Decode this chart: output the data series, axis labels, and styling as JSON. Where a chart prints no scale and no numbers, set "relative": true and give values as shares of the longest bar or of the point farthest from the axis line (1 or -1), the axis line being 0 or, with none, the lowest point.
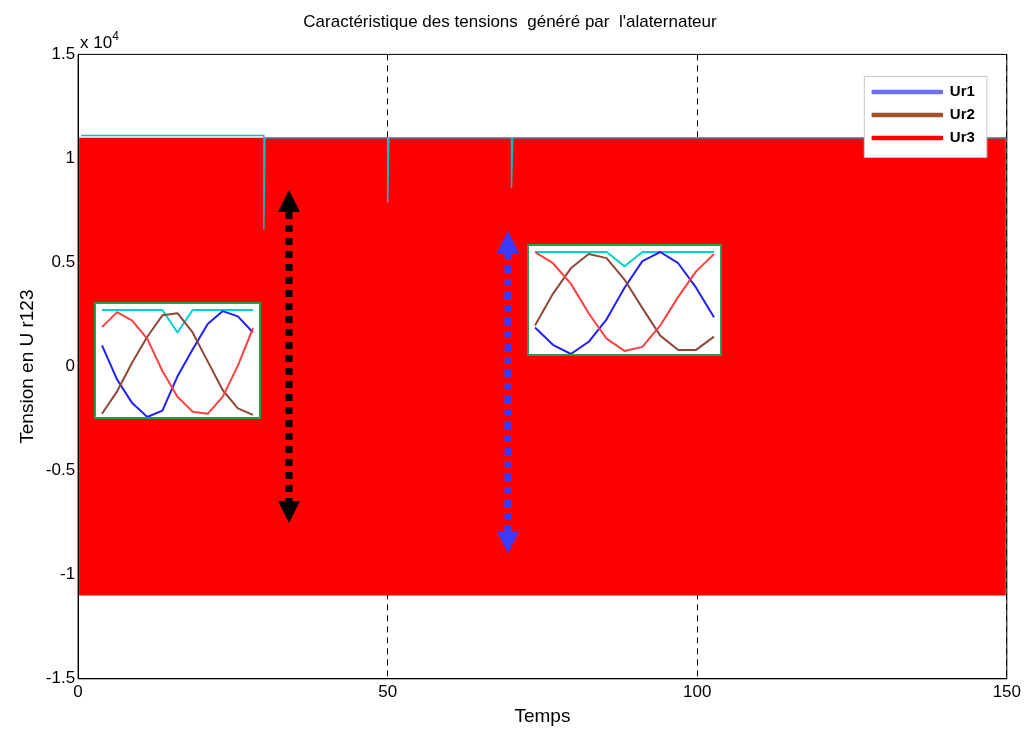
{
  "chart_data": [
    {
      "type": "line",
      "title": "Caractéristique des tensions  généré par  l'alaternateur",
      "xlabel": "Temps",
      "ylabel": "Tension en U r123",
      "annotations": [
        "x 10$^{4}$"
      ],
      "xlim": [
        0,
        150
      ],
      "xticks": [
        0,
        50,
        100,
        150
      ],
      "ylim": [
        -1.5,
        1.5
      ],
      "yticks": [
        -1.5,
        -1,
        -0.5,
        0,
        0.5,
        1,
        1.5
      ],
      "grid": "x",
      "legend": "top right",
      "line_style": "solid",
      "marker": "none",
      "bands": [
        {
          "axis": "y",
          "from": -1.1,
          "to": 1.1,
          "color": "#ff0000"
        }
      ],
      "series": [
        {
          "name": "Ur1",
          "color": "#7070ff"
        },
        {
          "name": "Ur2",
          "color": "#a0522d"
        },
        {
          "name": "Ur3",
          "color": "#ff0000"
        },
        {
          "color": "#00c0c0",
          "x": [
            0.5,
            30,
            30,
            30.2,
            50,
            50,
            50.2,
            70,
            70,
            70.2,
            150
          ],
          "values": [
            1.11,
            1.11,
            0.66,
            1.1,
            1.1,
            0.79,
            1.1,
            1.1,
            0.86,
            1.1,
            1.1
          ]
        }
      ]
    },
    {
      "type": "line",
      "relative": true,
      "marker": "none",
      "categories": [
        null,
        null,
        null,
        null,
        null,
        null,
        null,
        null,
        null,
        null,
        null
      ],
      "series": [
        {
          "color": "#ff4040",
          "values": [
            0.84,
            0.98,
            0.9,
            0.73,
            0.43,
            0.19,
            0.05,
            0.03,
            0.19,
            0.48,
            0.83
          ]
        },
        {
          "color": "#904838",
          "values": [
            0.03,
            0.24,
            0.51,
            0.75,
            0.95,
            0.97,
            0.79,
            0.52,
            0.25,
            0.08,
            0.02
          ]
        },
        {
          "color": "#2020ff",
          "values": [
            0.67,
            0.35,
            0.13,
            0,
            0.06,
            0.38,
            0.63,
            0.87,
            0.99,
            0.94,
            0.79
          ]
        },
        {
          "color": "#00d0d0",
          "values": [
            1,
            1,
            1,
            1,
            1,
            0.79,
            1,
            1,
            1,
            1,
            1
          ]
        }
      ]
    },
    {
      "type": "line",
      "relative": true,
      "marker": "none",
      "categories": [
        null,
        null,
        null,
        null,
        null,
        null,
        null,
        null,
        null,
        null,
        null
      ],
      "series": [
        {
          "color": "#ff4040",
          "values": [
            1,
            0.89,
            0.69,
            0.4,
            0.15,
            0.03,
            0.07,
            0.28,
            0.56,
            0.81,
            0.98
          ]
        },
        {
          "color": "#904838",
          "values": [
            0.28,
            0.59,
            0.84,
            0.98,
            0.94,
            0.73,
            0.45,
            0.18,
            0.04,
            0.04,
            0.17
          ]
        },
        {
          "color": "#2020ff",
          "values": [
            0.26,
            0.09,
            0,
            0.12,
            0.34,
            0.65,
            0.91,
            1,
            0.89,
            0.65,
            0.36
          ]
        },
        {
          "color": "#00d0d0",
          "values": [
            1,
            1,
            1,
            1,
            1,
            0.86,
            1,
            1,
            1,
            1,
            1
          ]
        }
      ]
    }
  ]
}
